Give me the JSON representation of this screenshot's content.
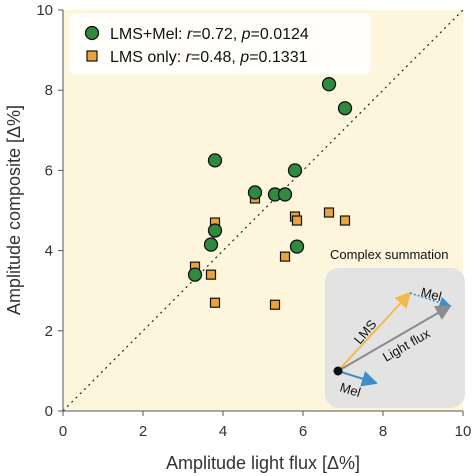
{
  "chart_data": {
    "type": "scatter",
    "xlabel": "Amplitude light flux [Δ%]",
    "ylabel": "Amplitude composite [Δ%]",
    "xlim": [
      0,
      10
    ],
    "ylim": [
      0,
      10
    ],
    "x_ticks": [
      "0",
      "2",
      "4",
      "6",
      "8",
      "10"
    ],
    "y_ticks": [
      "0",
      "2",
      "4",
      "6",
      "8",
      "10"
    ],
    "grid": false,
    "reference_line": "identity",
    "legend_position": "top-left",
    "series": [
      {
        "name": "LMS+Mel",
        "legend_plain": "LMS+Mel: ",
        "legend_r_symbol": "r",
        "legend_r_value": "=0.72, ",
        "legend_p_symbol": "p",
        "legend_p_value": "=0.0124",
        "marker": "circle",
        "color": "#2e8b3e",
        "points": [
          {
            "x": 3.3,
            "y": 3.4
          },
          {
            "x": 3.7,
            "y": 4.15
          },
          {
            "x": 3.8,
            "y": 4.5
          },
          {
            "x": 3.8,
            "y": 6.25
          },
          {
            "x": 4.8,
            "y": 5.45
          },
          {
            "x": 5.3,
            "y": 5.4
          },
          {
            "x": 5.55,
            "y": 5.4
          },
          {
            "x": 5.8,
            "y": 6.0
          },
          {
            "x": 5.85,
            "y": 4.1
          },
          {
            "x": 6.65,
            "y": 8.15
          },
          {
            "x": 7.05,
            "y": 7.55
          }
        ]
      },
      {
        "name": "LMS only",
        "legend_plain": "LMS only: ",
        "legend_r_symbol": "r",
        "legend_r_value": "=0.48, ",
        "legend_p_symbol": "p",
        "legend_p_value": "=0.1331",
        "marker": "square",
        "color": "#e8a33d",
        "points": [
          {
            "x": 3.3,
            "y": 3.6
          },
          {
            "x": 3.7,
            "y": 3.4
          },
          {
            "x": 3.8,
            "y": 4.7
          },
          {
            "x": 3.8,
            "y": 2.7
          },
          {
            "x": 4.8,
            "y": 5.3
          },
          {
            "x": 5.3,
            "y": 2.65
          },
          {
            "x": 5.55,
            "y": 3.85
          },
          {
            "x": 5.8,
            "y": 4.85
          },
          {
            "x": 5.85,
            "y": 4.75
          },
          {
            "x": 6.65,
            "y": 4.95
          },
          {
            "x": 7.05,
            "y": 4.75
          }
        ]
      }
    ],
    "inset": {
      "title": "Complex summation",
      "lms_label": "LMS",
      "mel_label": "Mel",
      "flux_label": "Light flux",
      "mel_bottom_label": "Mel"
    },
    "colors": {
      "plot_background": "#fdf6dc",
      "inset_background": "#e3e3e3",
      "lms_arrow": "#f2b84a",
      "mel_arrow": "#3a8fc9",
      "flux_arrow": "#8c8c8c"
    }
  }
}
